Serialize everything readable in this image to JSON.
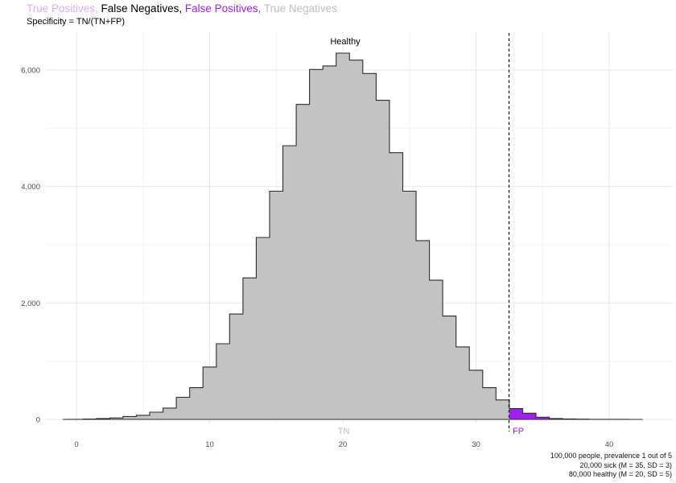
{
  "header": {
    "title_segments": [
      {
        "text": "True Positives,",
        "color": "#deaef7"
      },
      {
        "text": " False Negatives, ",
        "color": "#000000"
      },
      {
        "text": "False Positives,",
        "color": "#a020f0"
      },
      {
        "text": " True Negatives",
        "color": "#bfbfbf"
      }
    ],
    "subtitle": "Specificity = TN/(TN+FP)"
  },
  "chart_data": {
    "type": "bar",
    "subtype": "histogram",
    "title": "True Positives, False Negatives, False Positives, True Negatives",
    "subtitle": "Specificity = TN/(TN+FP)",
    "xlabel": "",
    "ylabel": "",
    "bin_width": 1,
    "categories": [
      0,
      1,
      2,
      3,
      4,
      5,
      6,
      7,
      8,
      9,
      10,
      11,
      12,
      13,
      14,
      15,
      16,
      17,
      18,
      19,
      20,
      21,
      22,
      23,
      24,
      25,
      26,
      27,
      28,
      29,
      30,
      31,
      32,
      33,
      34,
      35,
      36,
      37,
      38,
      39,
      40,
      41,
      42
    ],
    "values": [
      2,
      5,
      15,
      25,
      50,
      70,
      125,
      195,
      380,
      545,
      900,
      1300,
      1810,
      2430,
      3125,
      3920,
      4700,
      5410,
      6010,
      6070,
      6290,
      6170,
      5940,
      5480,
      4580,
      3920,
      3070,
      2390,
      1775,
      1245,
      845,
      545,
      335,
      185,
      107,
      37,
      15,
      8,
      4,
      2,
      1,
      1,
      0
    ],
    "cutoff_x": 32.5,
    "outline_color": "#2d2d2d",
    "segments": [
      {
        "name": "TN (healthy below cutoff)",
        "fill": "#c3c3c3",
        "range": [
          -0.5,
          32.5
        ]
      },
      {
        "name": "FP (healthy above cutoff)",
        "fill": "#a020f0",
        "range": [
          32.5,
          42.5
        ]
      }
    ],
    "xticks": [
      {
        "v": 0,
        "label": "0"
      },
      {
        "v": 10,
        "label": "10"
      },
      {
        "v": 20,
        "label": "20"
      },
      {
        "v": 30,
        "label": "30"
      },
      {
        "v": 40,
        "label": "40"
      }
    ],
    "yticks": [
      {
        "v": 0,
        "label": "0"
      },
      {
        "v": 2000,
        "label": "2,000"
      },
      {
        "v": 4000,
        "label": "4,000"
      },
      {
        "v": 6000,
        "label": "6,000"
      }
    ],
    "xticks_minor": [
      5,
      15,
      25,
      35
    ],
    "yticks_minor": [
      1000,
      3000,
      5000
    ],
    "xlim": [
      -2.3,
      44.8
    ],
    "ylim": [
      0,
      6700
    ],
    "grid": "major+minor",
    "grid_major_color": "#e7e7e7",
    "grid_minor_color": "#f3f3f3",
    "annotations": {
      "healthy": {
        "text": "Healthy",
        "x": 20.2,
        "color": "#000000"
      },
      "tn": {
        "text": "TN",
        "x": 20.1,
        "color": "#bdbdbd"
      },
      "fp": {
        "text": "FP",
        "x": 33.2,
        "color": "#a020f0"
      }
    }
  },
  "caption": {
    "lines": [
      "100,000 people, prevalence 1 out of 5",
      "20,000 sick (M = 35, SD = 3)",
      "80,000 healthy (M = 20, SD = 5)"
    ]
  }
}
